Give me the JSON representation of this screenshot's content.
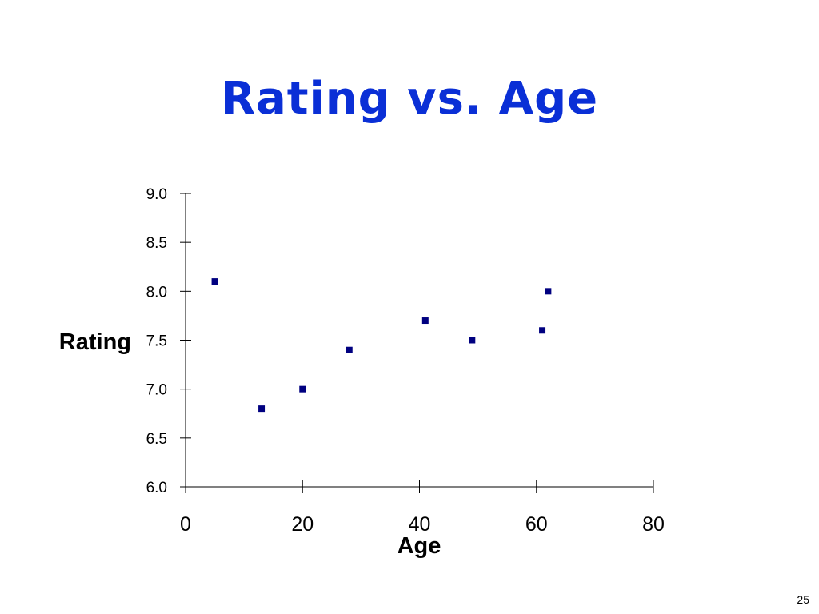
{
  "slide": {
    "title": "Rating vs. Age",
    "page_number": "25",
    "title_color": "#0a2fd6"
  },
  "chart_data": {
    "type": "scatter",
    "xlabel": "Age",
    "ylabel": "Rating",
    "xlim": [
      0,
      80
    ],
    "ylim": [
      6.0,
      9.0
    ],
    "x_ticks": [
      "0",
      "20",
      "40",
      "60",
      "80"
    ],
    "y_ticks": [
      "6.0",
      "6.5",
      "7.0",
      "7.5",
      "8.0",
      "8.5",
      "9.0"
    ],
    "grid": false,
    "legend": "none",
    "marker_color": "#000080",
    "points": [
      {
        "x": 5,
        "y": 8.1
      },
      {
        "x": 13,
        "y": 6.8
      },
      {
        "x": 20,
        "y": 7.0
      },
      {
        "x": 28,
        "y": 7.4
      },
      {
        "x": 41,
        "y": 7.7
      },
      {
        "x": 49,
        "y": 7.5
      },
      {
        "x": 61,
        "y": 7.6
      },
      {
        "x": 62,
        "y": 8.0
      }
    ]
  }
}
